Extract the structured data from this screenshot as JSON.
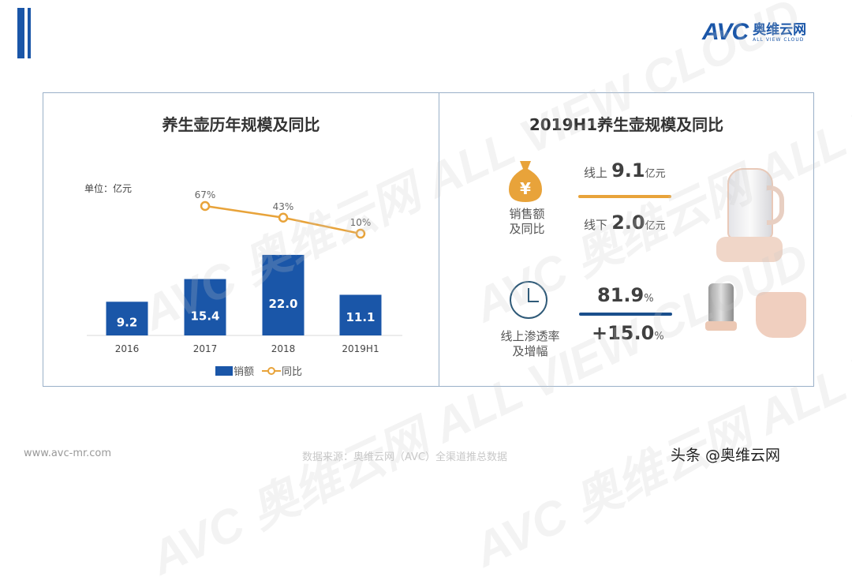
{
  "logo": {
    "brand": "AVC",
    "cn": "奥维云网",
    "en": "ALL VIEW CLOUD"
  },
  "left_panel": {
    "title": "养生壶历年规模及同比",
    "unit": "单位：亿元"
  },
  "chart_data": {
    "type": "bar",
    "title": "养生壶历年规模及同比",
    "categories": [
      "2016",
      "2017",
      "2018",
      "2019H1"
    ],
    "series": [
      {
        "name": "销额",
        "type": "bar",
        "values": [
          9.2,
          15.4,
          22.0,
          11.1
        ],
        "labels": [
          "9.2",
          "15.4",
          "22.0",
          "11.1"
        ],
        "color": "#1a56a8"
      },
      {
        "name": "同比",
        "type": "line",
        "values": [
          null,
          67,
          43,
          10
        ],
        "labels": [
          "",
          "67%",
          "43%",
          "10%"
        ],
        "color": "#e8a33a"
      }
    ],
    "ylabel": "单位：亿元",
    "grid": false,
    "legend": "bottom"
  },
  "right_panel": {
    "title": "2019H1养生壶规模及同比",
    "sales": {
      "icon": "money-bag-icon",
      "label_line1": "销售额",
      "label_line2": "及同比",
      "online_label": "线上",
      "online_value": "9.1",
      "online_unit": "亿元",
      "offline_label": "线下",
      "offline_value": "2.0",
      "offline_unit": "亿元",
      "color": "#e8a33a"
    },
    "penetration": {
      "icon": "clock-icon",
      "label_line1": "线上渗透率",
      "label_line2": "及增幅",
      "value": "81.9",
      "value_unit": "%",
      "increase": "+15.0",
      "increase_unit": "%",
      "color": "#1a4f8c"
    }
  },
  "watermark": {
    "text": "AVC 奥维云网 ALL VIEW CLOUD"
  },
  "footer": {
    "website": "www.avc-mr.com",
    "source": "数据来源：奥维云网（AVC）全渠道推总数据",
    "credit": "头条 @奥维云网"
  }
}
